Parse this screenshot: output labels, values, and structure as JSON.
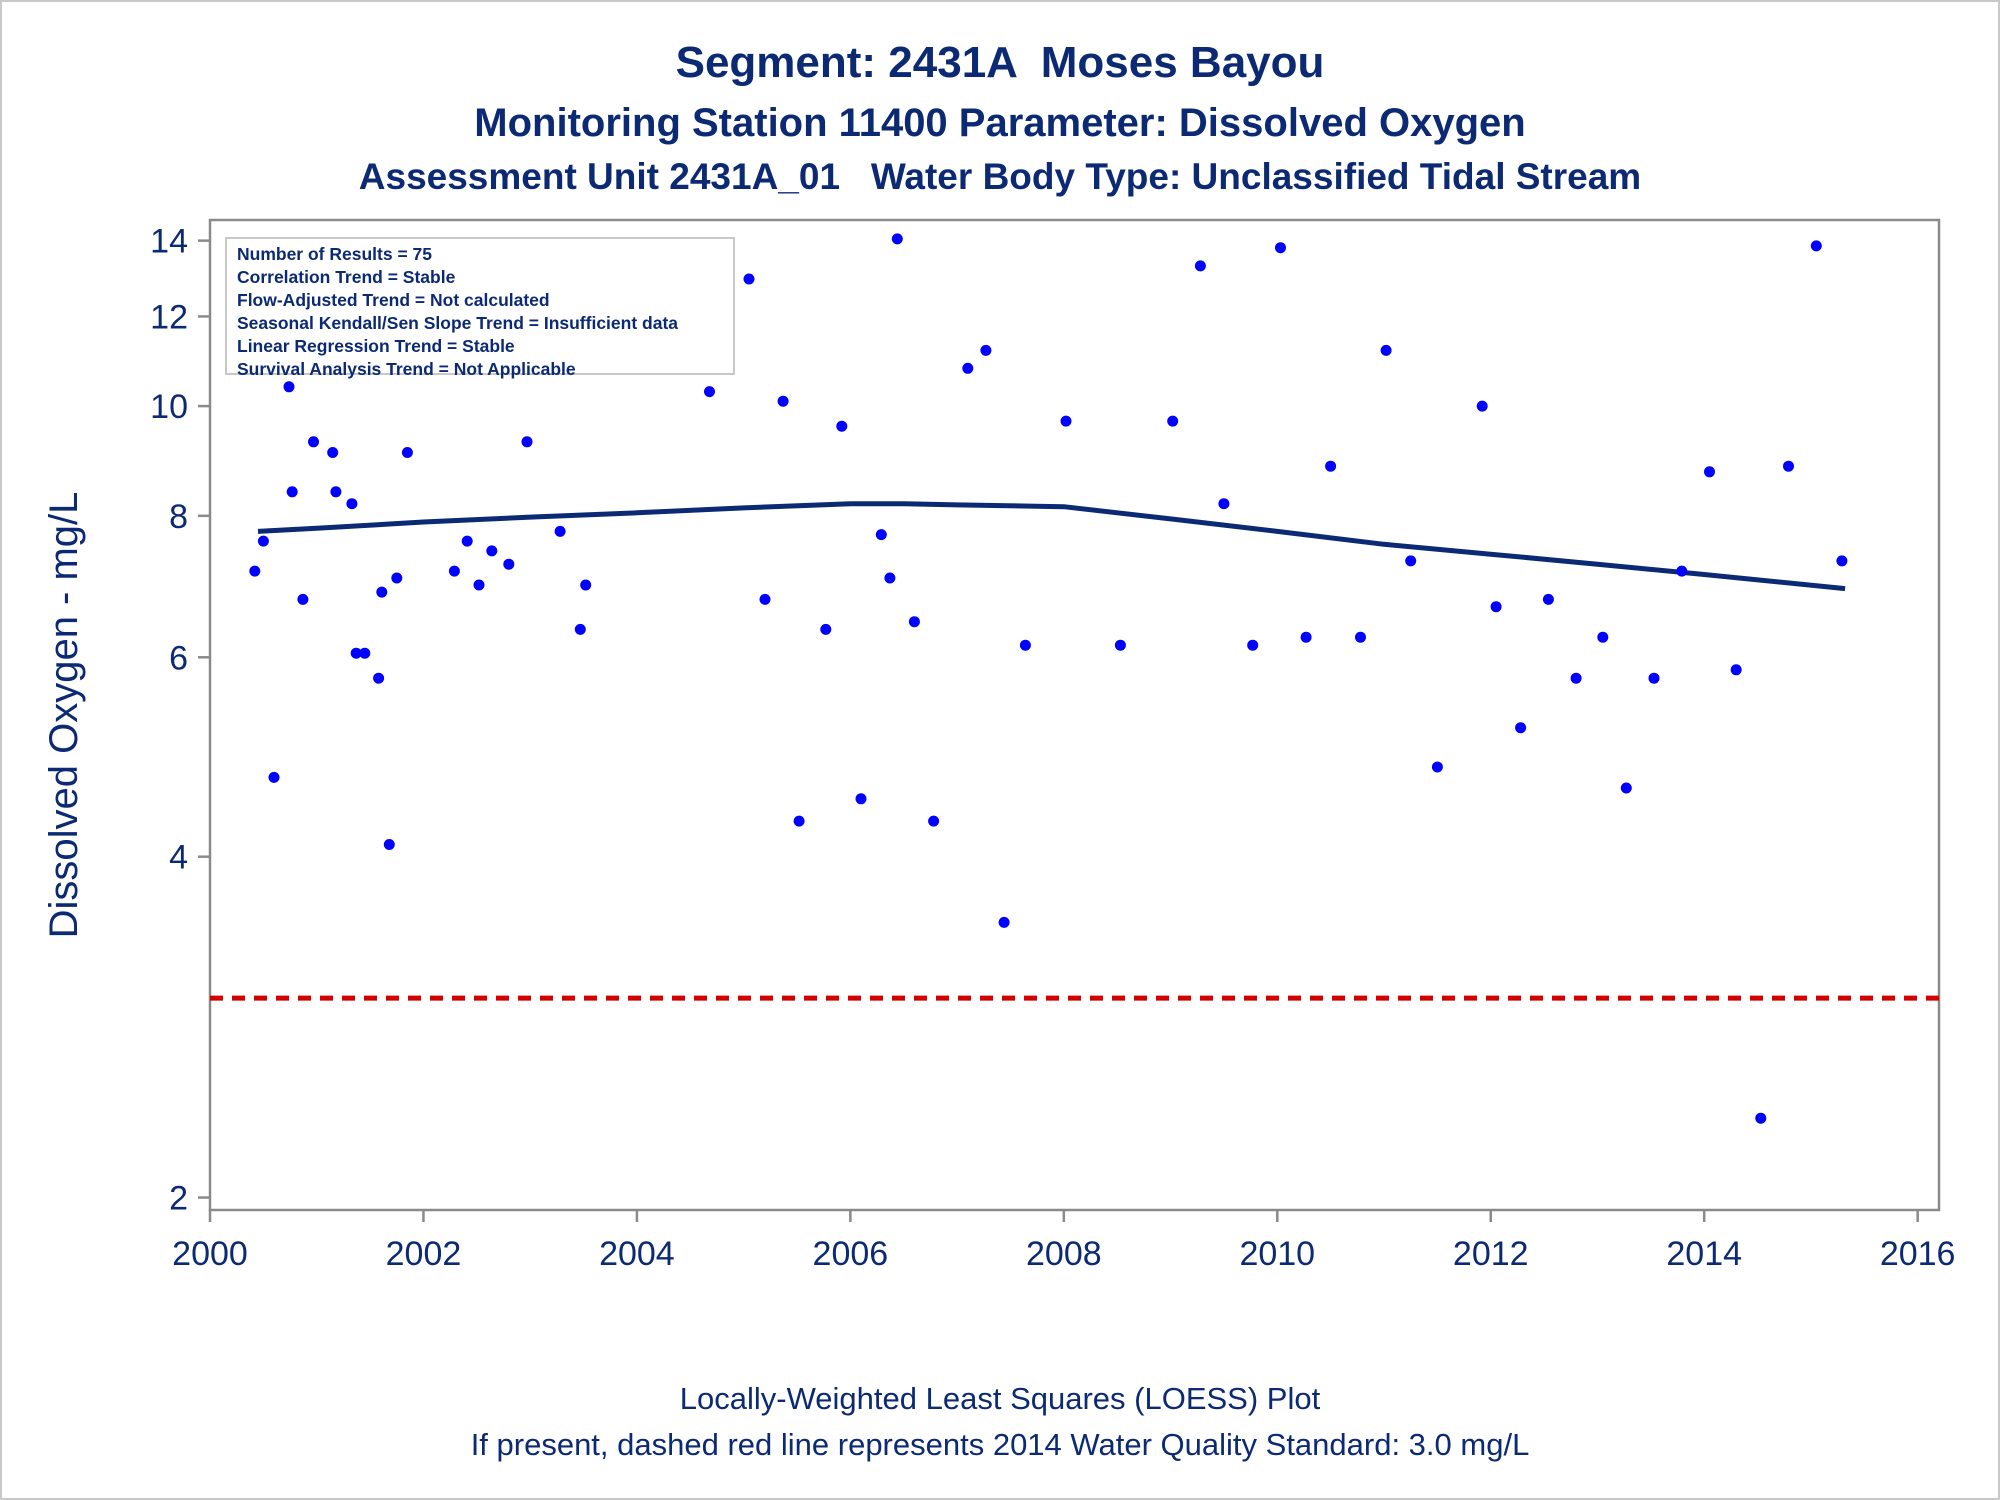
{
  "titles": {
    "line1": "Segment: 2431A  Moses Bayou",
    "line2": "Monitoring Station 11400 Parameter: Dissolved Oxygen",
    "line3": "Assessment Unit 2431A_01   Water Body Type: Unclassified Tidal Stream"
  },
  "footnotes": {
    "line1": "Locally-Weighted Least Squares (LOESS) Plot",
    "line2": "If present, dashed red line represents 2014 Water Quality Standard: 3.0 mg/L"
  },
  "infobox": [
    "Number of Results = 75",
    "Correlation Trend = Stable",
    "Flow-Adjusted Trend = Not calculated",
    "Seasonal Kendall/Sen Slope Trend = Insufficient data",
    "Linear Regression Trend = Stable",
    "Survival Analysis Trend = Not Applicable"
  ],
  "colors": {
    "text": "#0c2a74",
    "points": "#0000ff",
    "loess": "#0c2a74",
    "standard": "#d40000",
    "axis": "#8a8a8a"
  },
  "chart_data": {
    "type": "scatter",
    "ylabel": "Dissolved Oxygen - mg/L",
    "xlabel": "",
    "yscale": "log",
    "xlim": [
      2000,
      2016.2
    ],
    "ylim": [
      1.95,
      14.6
    ],
    "xticks": [
      2000,
      2002,
      2004,
      2006,
      2008,
      2010,
      2012,
      2014,
      2016
    ],
    "yticks": [
      2,
      4,
      6,
      8,
      10,
      12,
      14
    ],
    "grid": false,
    "points": {
      "x": [
        2000.42,
        2000.5,
        2000.6,
        2000.74,
        2000.77,
        2000.87,
        2000.97,
        2001.15,
        2001.18,
        2001.33,
        2001.37,
        2001.45,
        2001.58,
        2001.61,
        2001.68,
        2001.75,
        2001.85,
        2001.97,
        2002.1,
        2002.29,
        2002.41,
        2002.52,
        2002.64,
        2002.8,
        2002.97,
        2003.1,
        2003.28,
        2003.47,
        2003.52,
        2004.68,
        2004.85,
        2005.05,
        2005.2,
        2005.37,
        2005.52,
        2005.77,
        2005.92,
        2006.1,
        2006.29,
        2006.37,
        2006.44,
        2006.6,
        2006.78,
        2007.1,
        2007.27,
        2007.44,
        2007.64,
        2008.02,
        2008.53,
        2009.02,
        2009.28,
        2009.5,
        2009.77,
        2010.03,
        2010.27,
        2010.5,
        2010.78,
        2011.02,
        2011.25,
        2011.5,
        2011.92,
        2012.05,
        2012.28,
        2012.54,
        2012.8,
        2013.05,
        2013.27,
        2013.53,
        2013.79,
        2014.05,
        2014.3,
        2014.53,
        2014.79,
        2015.05,
        2015.29
      ],
      "y": [
        7.15,
        7.6,
        4.7,
        10.4,
        8.4,
        6.75,
        9.3,
        9.1,
        8.4,
        8.2,
        6.05,
        6.05,
        5.75,
        6.85,
        4.1,
        7.05,
        9.1,
        11.05,
        12.05,
        7.15,
        7.6,
        6.95,
        7.45,
        7.25,
        9.3,
        12.25,
        7.75,
        6.35,
        6.95,
        10.3,
        12.6,
        12.95,
        6.75,
        10.1,
        4.3,
        6.35,
        9.6,
        4.5,
        7.7,
        7.05,
        14.05,
        6.45,
        4.3,
        10.8,
        11.2,
        3.5,
        6.15,
        9.7,
        6.15,
        9.7,
        13.3,
        8.2,
        6.15,
        13.8,
        6.25,
        8.85,
        6.25,
        11.2,
        7.3,
        4.8,
        10.0,
        6.65,
        5.2,
        6.75,
        5.75,
        6.25,
        4.6,
        5.75,
        7.15,
        8.75,
        5.85,
        2.35,
        8.85,
        13.85,
        7.3
      ]
    },
    "series": [
      {
        "name": "",
        "type": "line",
        "x": [
          2000.45,
          2001.0,
          2002.0,
          2003.0,
          2004.0,
          2005.0,
          2006.0,
          2006.5,
          2007.0,
          2008.0,
          2009.0,
          2010.0,
          2011.0,
          2012.0,
          2013.0,
          2014.0,
          2015.32
        ],
        "y": [
          7.75,
          7.8,
          7.9,
          7.98,
          8.05,
          8.13,
          8.2,
          8.2,
          8.18,
          8.15,
          7.95,
          7.75,
          7.55,
          7.4,
          7.25,
          7.1,
          6.9
        ]
      }
    ],
    "reference_line": {
      "y": 3.0,
      "style": "dashed"
    }
  }
}
